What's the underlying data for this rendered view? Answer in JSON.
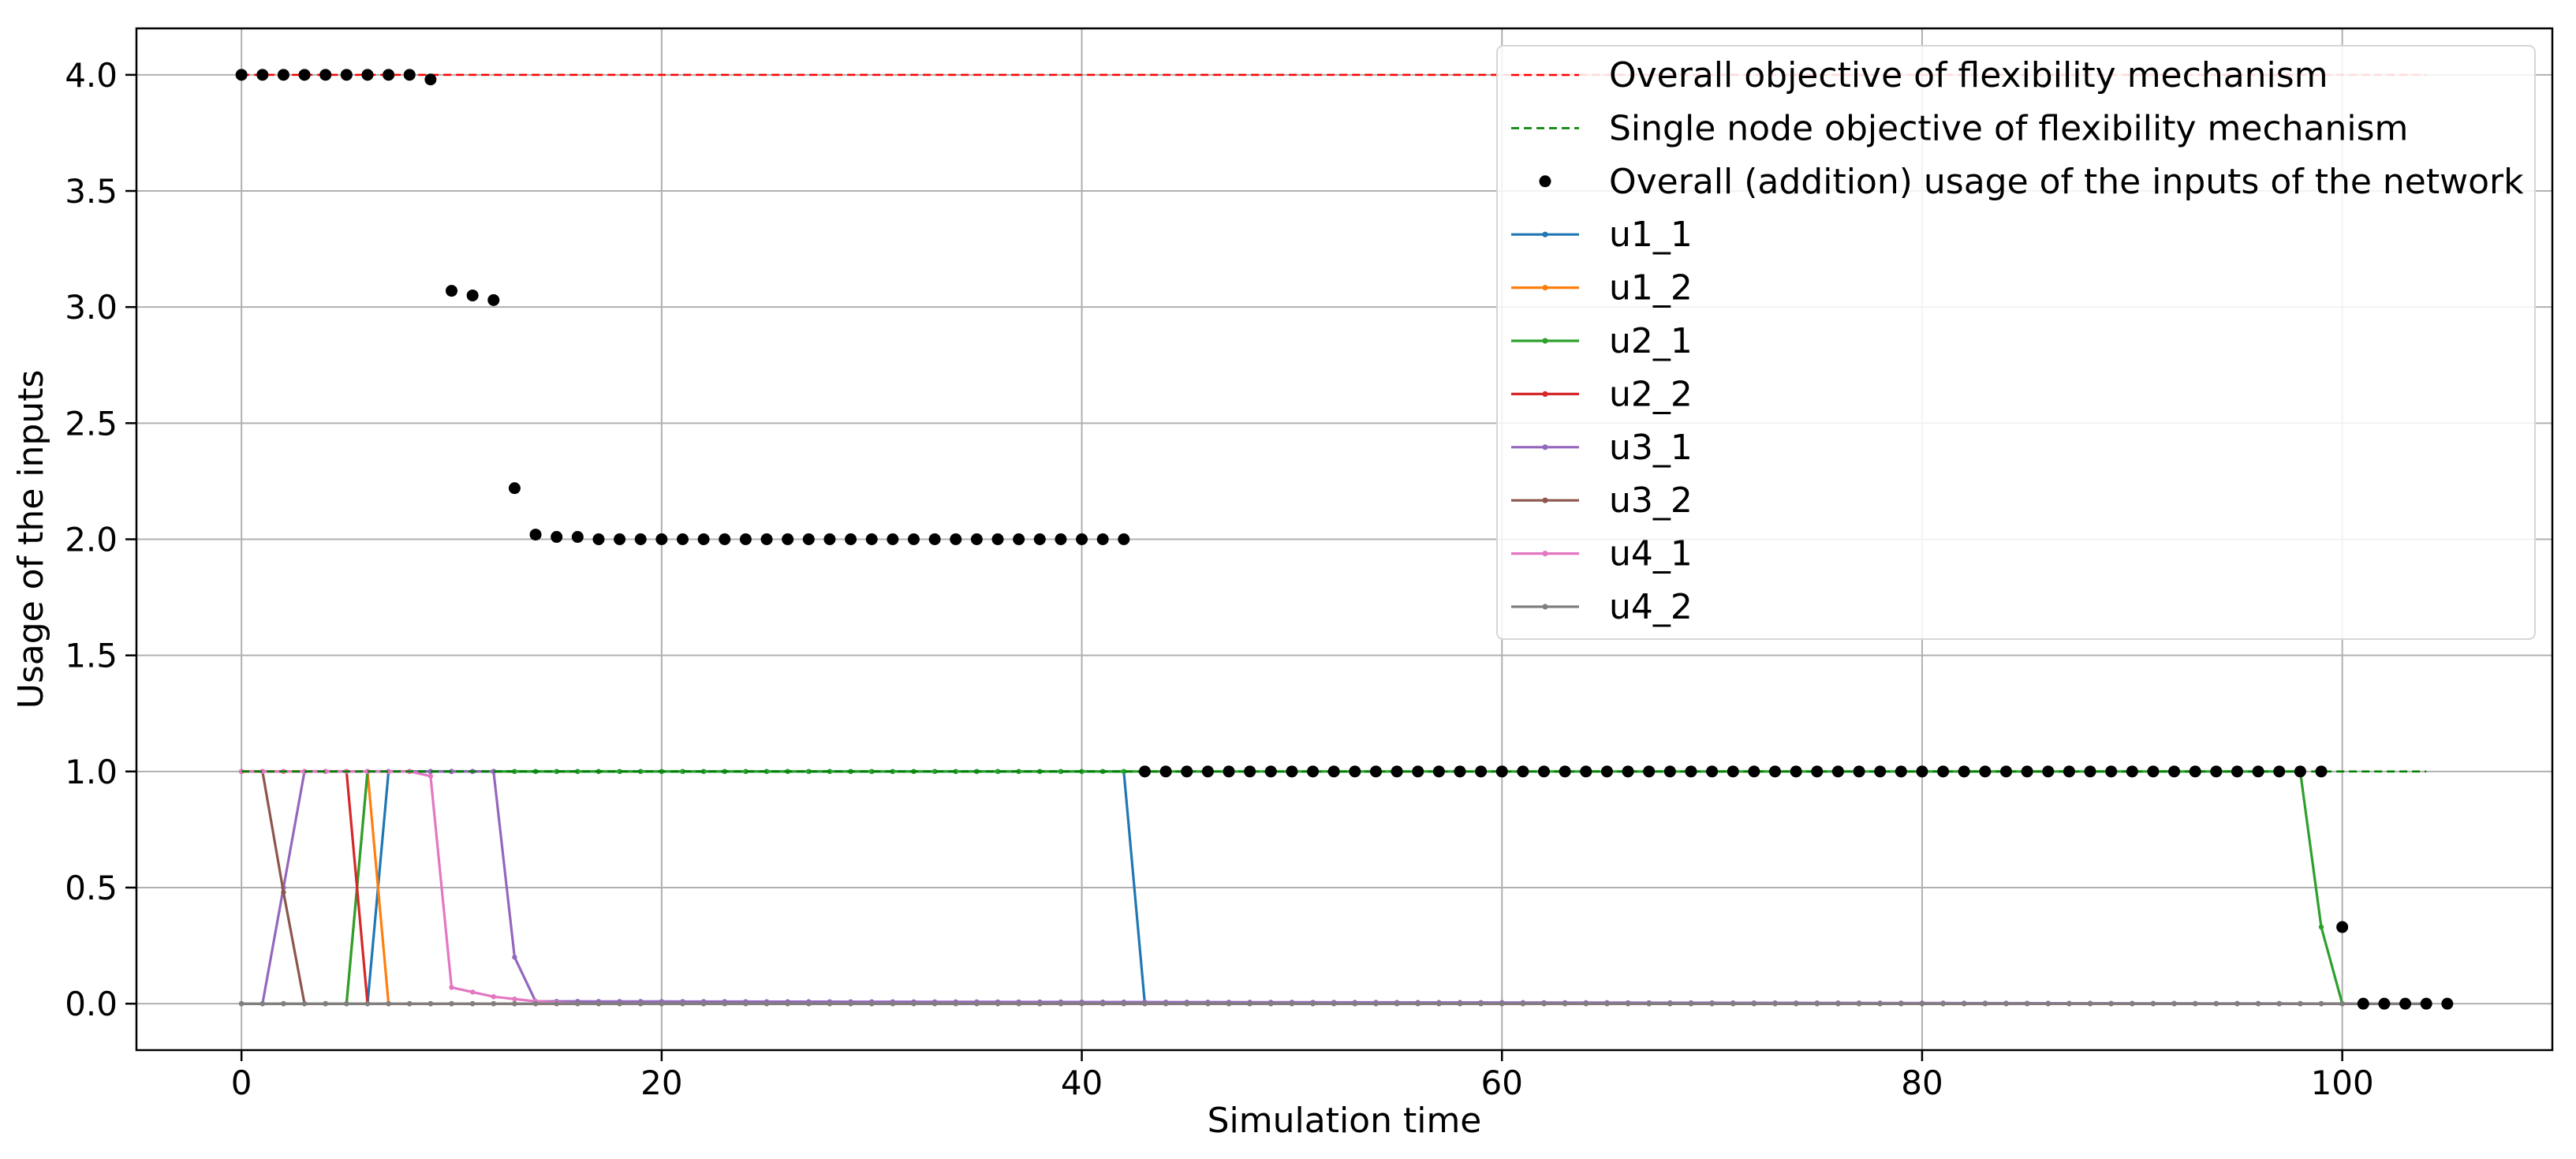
{
  "chart_data": {
    "type": "line",
    "title": "",
    "xlabel": "Simulation time",
    "ylabel": "Usage of the inputs",
    "xlim": [
      -5,
      110
    ],
    "ylim": [
      -0.2,
      4.2
    ],
    "xticks": [
      0,
      20,
      40,
      60,
      80,
      100
    ],
    "yticks": [
      0.0,
      0.5,
      1.0,
      1.5,
      2.0,
      2.5,
      3.0,
      3.5,
      4.0
    ],
    "xtick_labels": [
      "0",
      "20",
      "40",
      "60",
      "80",
      "100"
    ],
    "ytick_labels": [
      "0.0",
      "0.5",
      "1.0",
      "1.5",
      "2.0",
      "2.5",
      "3.0",
      "3.5",
      "4.0"
    ],
    "grid": true,
    "legend_position": "top-right",
    "x_start": 0,
    "x_end": 104,
    "series": [
      {
        "name": "Overall objective of flexibility mechanism",
        "style": "dashed",
        "color": "#ff0000",
        "x": [
          0,
          104
        ],
        "values": [
          4.0,
          4.0
        ]
      },
      {
        "name": "Single node objective of flexibility mechanism",
        "style": "dashed",
        "color": "#008000",
        "x": [
          0,
          104
        ],
        "values": [
          1.0,
          1.0
        ]
      },
      {
        "name": "Overall (addition) usage of the inputs of the network",
        "style": "scatter",
        "color": "#000000",
        "values": [
          4.0,
          4.0,
          4.0,
          4.0,
          4.0,
          4.0,
          4.0,
          4.0,
          4.0,
          3.98,
          3.07,
          3.05,
          3.03,
          2.22,
          2.02,
          2.01,
          2.01,
          2.0,
          2.0,
          2.0,
          2.0,
          2.0,
          2.0,
          2.0,
          2.0,
          2.0,
          2.0,
          2.0,
          2.0,
          2.0,
          2.0,
          2.0,
          2.0,
          2.0,
          2.0,
          2.0,
          2.0,
          2.0,
          2.0,
          2.0,
          2.0,
          2.0,
          2.0,
          1.0,
          1.0,
          1.0,
          1.0,
          1.0,
          1.0,
          1.0,
          1.0,
          1.0,
          1.0,
          1.0,
          1.0,
          1.0,
          1.0,
          1.0,
          1.0,
          1.0,
          1.0,
          1.0,
          1.0,
          1.0,
          1.0,
          1.0,
          1.0,
          1.0,
          1.0,
          1.0,
          1.0,
          1.0,
          1.0,
          1.0,
          1.0,
          1.0,
          1.0,
          1.0,
          1.0,
          1.0,
          1.0,
          1.0,
          1.0,
          1.0,
          1.0,
          1.0,
          1.0,
          1.0,
          1.0,
          1.0,
          1.0,
          1.0,
          1.0,
          1.0,
          1.0,
          1.0,
          1.0,
          1.0,
          1.0,
          1.0,
          0.33,
          0.0,
          0.0,
          0.0,
          0.0,
          0.0
        ]
      },
      {
        "name": "u1_1",
        "style": "line",
        "color": "#1f77b4",
        "segments": [
          [
            0,
            0
          ],
          [
            6,
            0
          ],
          [
            7,
            1
          ],
          [
            42,
            1
          ],
          [
            43,
            0
          ],
          [
            104,
            0
          ]
        ]
      },
      {
        "name": "u1_2",
        "style": "line",
        "color": "#ff7f0e",
        "segments": [
          [
            0,
            0
          ],
          [
            5,
            0
          ],
          [
            6,
            1
          ],
          [
            7,
            0
          ],
          [
            104,
            0
          ]
        ]
      },
      {
        "name": "u2_1",
        "style": "line",
        "color": "#2ca02c",
        "segments": [
          [
            0,
            0
          ],
          [
            5,
            0
          ],
          [
            6,
            1
          ],
          [
            98,
            1
          ],
          [
            99,
            0.33
          ],
          [
            100,
            0
          ],
          [
            104,
            0
          ]
        ]
      },
      {
        "name": "u2_2",
        "style": "line",
        "color": "#d62728",
        "segments": [
          [
            0,
            1
          ],
          [
            5,
            1
          ],
          [
            6,
            0
          ],
          [
            104,
            0
          ]
        ]
      },
      {
        "name": "u3_1",
        "style": "line",
        "color": "#9467bd",
        "segments": [
          [
            0,
            0
          ],
          [
            1,
            0
          ],
          [
            2,
            0.5
          ],
          [
            3,
            1
          ],
          [
            12,
            1
          ],
          [
            13,
            0.2
          ],
          [
            14,
            0.01
          ],
          [
            104,
            0
          ]
        ]
      },
      {
        "name": "u3_2",
        "style": "line",
        "color": "#8c564b",
        "segments": [
          [
            0,
            1
          ],
          [
            1,
            1
          ],
          [
            2,
            0.48
          ],
          [
            3,
            0
          ],
          [
            104,
            0
          ]
        ]
      },
      {
        "name": "u4_1",
        "style": "line",
        "color": "#e377c2",
        "segments": [
          [
            0,
            1
          ],
          [
            8,
            1
          ],
          [
            9,
            0.98
          ],
          [
            10,
            0.07
          ],
          [
            11,
            0.05
          ],
          [
            12,
            0.03
          ],
          [
            13,
            0.02
          ],
          [
            14,
            0.01
          ],
          [
            16,
            0
          ],
          [
            104,
            0
          ]
        ]
      },
      {
        "name": "u4_2",
        "style": "line",
        "color": "#7f7f7f",
        "segments": [
          [
            0,
            0
          ],
          [
            104,
            0
          ]
        ]
      }
    ]
  }
}
